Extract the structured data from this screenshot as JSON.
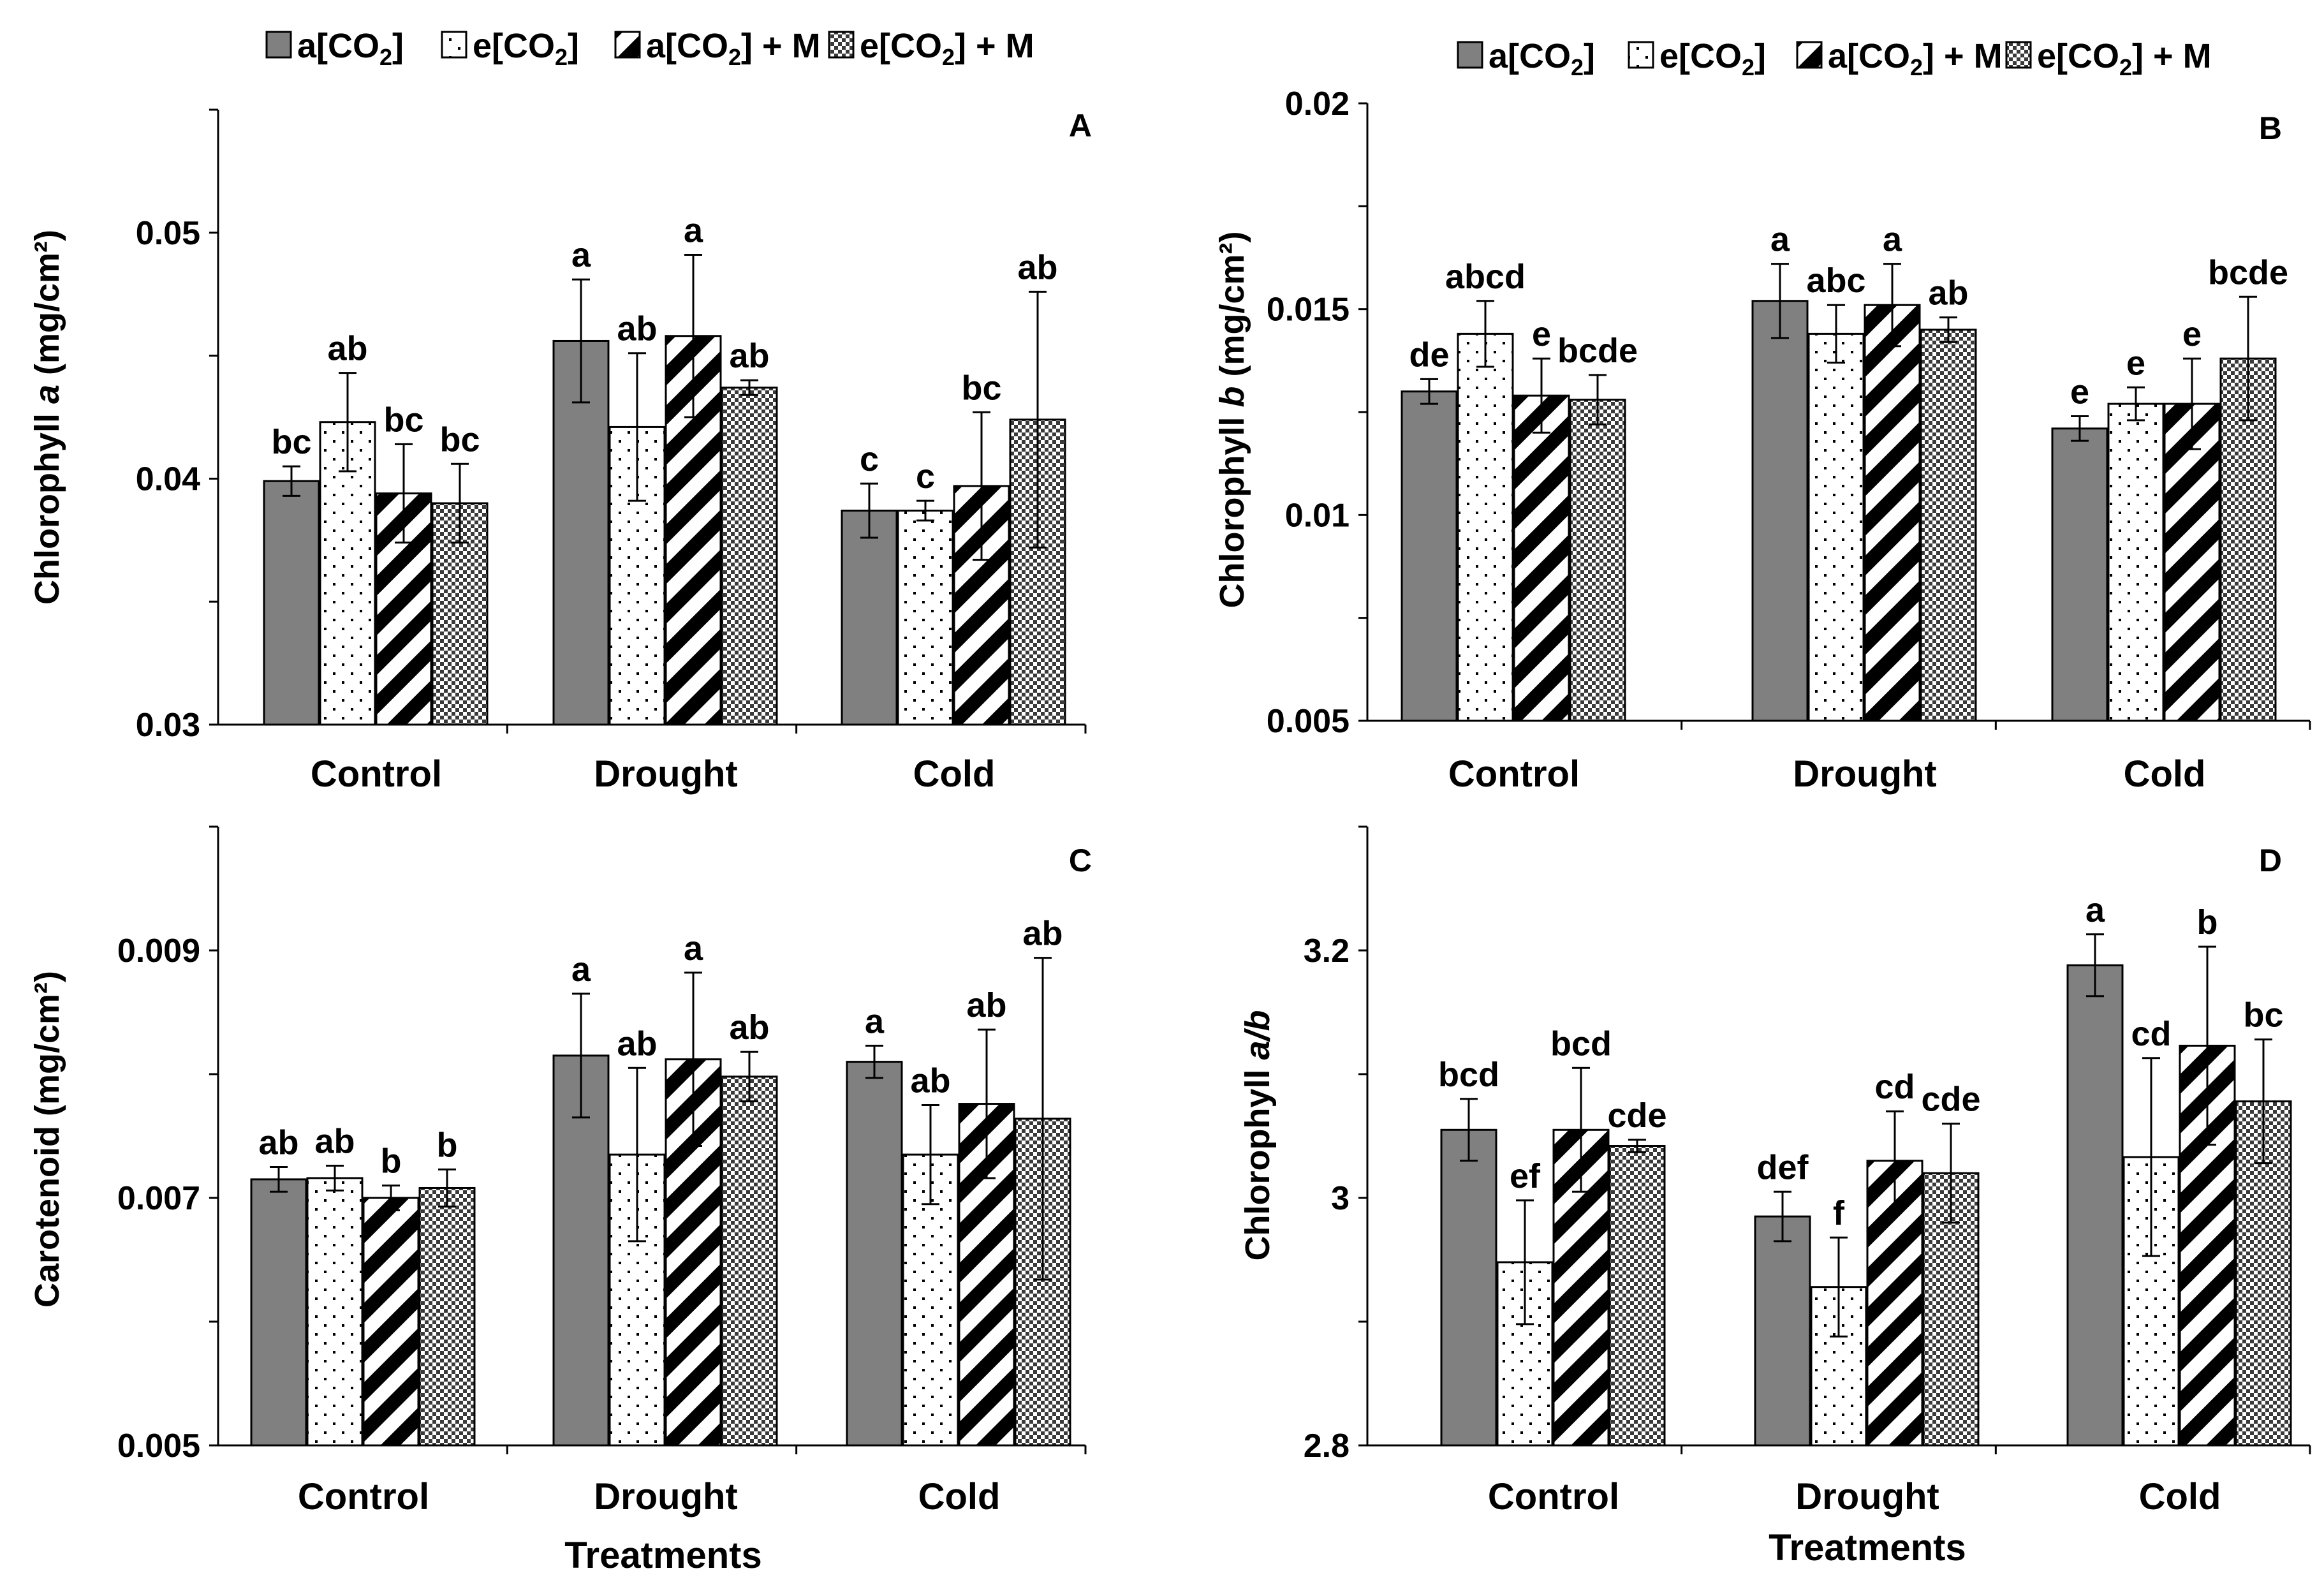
{
  "legend": {
    "items": [
      {
        "pre": "a[CO",
        "sub": "2",
        "post": "]",
        "pattern": "solid"
      },
      {
        "pre": "e[CO",
        "sub": "2",
        "post": "]",
        "pattern": "dots"
      },
      {
        "pre": "a[CO",
        "sub": "2",
        "post": "] + M",
        "pattern": "diag"
      },
      {
        "pre": "e[CO",
        "sub": "2",
        "post": "] + M",
        "pattern": "check"
      }
    ]
  },
  "x_axis_title": "Treatments",
  "chart_data": [
    {
      "type": "bar",
      "panel": "A",
      "ylabel_pre": "Chlorophyll ",
      "ylabel_ital": "a",
      "ylabel_post": " (mg/cm²)",
      "ylim": [
        0.03,
        0.055
      ],
      "yticks": [
        "0.03",
        "0.04",
        "0.05"
      ],
      "ytick_values": [
        0.03,
        0.04,
        0.05
      ],
      "minor_step": 0.005,
      "categories": [
        "Control",
        "Drought",
        "Cold"
      ],
      "series": [
        {
          "name": "a[CO2]",
          "values": [
            0.0399,
            0.0456,
            0.0387
          ],
          "errors": [
            0.0006,
            0.0025,
            0.0011
          ],
          "labels": [
            "bc",
            "a",
            "c"
          ]
        },
        {
          "name": "e[CO2]",
          "values": [
            0.0423,
            0.0421,
            0.0387
          ],
          "errors": [
            0.002,
            0.003,
            0.0004
          ],
          "labels": [
            "ab",
            "ab",
            "c"
          ]
        },
        {
          "name": "a[CO2] + M",
          "values": [
            0.0394,
            0.0458,
            0.0397
          ],
          "errors": [
            0.002,
            0.0033,
            0.003
          ],
          "labels": [
            "bc",
            "a",
            "bc"
          ]
        },
        {
          "name": "e[CO2] + M",
          "values": [
            0.039,
            0.0437,
            0.0424
          ],
          "errors": [
            0.0016,
            0.0003,
            0.0052
          ],
          "labels": [
            "bc",
            "ab",
            "ab"
          ]
        }
      ]
    },
    {
      "type": "bar",
      "panel": "B",
      "ylabel_pre": "Chlorophyll ",
      "ylabel_ital": "b",
      "ylabel_post": " (mg/cm²)",
      "ylim": [
        0.005,
        0.02
      ],
      "yticks": [
        "0.005",
        "0.01",
        "0.015",
        "0.02"
      ],
      "ytick_values": [
        0.005,
        0.01,
        0.015,
        0.02
      ],
      "minor_step": 0.0025,
      "categories": [
        "Control",
        "Drought",
        "Cold"
      ],
      "series": [
        {
          "name": "a[CO2]",
          "values": [
            0.013,
            0.0152,
            0.0121
          ],
          "errors": [
            0.0003,
            0.0009,
            0.0003
          ],
          "labels": [
            "de",
            "a",
            "e"
          ]
        },
        {
          "name": "e[CO2]",
          "values": [
            0.0144,
            0.0144,
            0.0127
          ],
          "errors": [
            0.0008,
            0.0007,
            0.0004
          ],
          "labels": [
            "abcd",
            "abc",
            "e"
          ]
        },
        {
          "name": "a[CO2] + M",
          "values": [
            0.0129,
            0.0151,
            0.0127
          ],
          "errors": [
            0.0009,
            0.001,
            0.0011
          ],
          "labels": [
            "e",
            "a",
            "e"
          ]
        },
        {
          "name": "e[CO2] + M",
          "values": [
            0.0128,
            0.0145,
            0.0138
          ],
          "errors": [
            0.0006,
            0.0003,
            0.0015
          ],
          "labels": [
            "bcde",
            "ab",
            "bcde"
          ]
        }
      ]
    },
    {
      "type": "bar",
      "panel": "C",
      "ylabel_pre": "Carotenoid (mg/cm²)",
      "ylabel_ital": "",
      "ylabel_post": "",
      "ylim": [
        0.005,
        0.01
      ],
      "yticks": [
        "0.005",
        "0.007",
        "0.009"
      ],
      "ytick_values": [
        0.005,
        0.007,
        0.009
      ],
      "minor_step": 0.001,
      "categories": [
        "Control",
        "Drought",
        "Cold"
      ],
      "series": [
        {
          "name": "a[CO2]",
          "values": [
            0.00715,
            0.00815,
            0.0081
          ],
          "errors": [
            0.0001,
            0.0005,
            0.00013
          ],
          "labels": [
            "ab",
            "a",
            "a"
          ]
        },
        {
          "name": "e[CO2]",
          "values": [
            0.00716,
            0.00735,
            0.00735
          ],
          "errors": [
            0.0001,
            0.0007,
            0.0004
          ],
          "labels": [
            "ab",
            "ab",
            "ab"
          ]
        },
        {
          "name": "a[CO2] + M",
          "values": [
            0.007,
            0.00812,
            0.00776
          ],
          "errors": [
            0.0001,
            0.0007,
            0.0006
          ],
          "labels": [
            "b",
            "a",
            "ab"
          ]
        },
        {
          "name": "e[CO2] + M",
          "values": [
            0.00708,
            0.00798,
            0.00764
          ],
          "errors": [
            0.00015,
            0.0002,
            0.0013
          ],
          "labels": [
            "b",
            "ab",
            "ab"
          ]
        }
      ]
    },
    {
      "type": "bar",
      "panel": "D",
      "ylabel_pre": "Chlorophyll ",
      "ylabel_ital": "a/b",
      "ylabel_post": "",
      "ylim": [
        2.8,
        3.3
      ],
      "yticks": [
        "2.8",
        "3",
        "3.2"
      ],
      "ytick_values": [
        2.8,
        3.0,
        3.2
      ],
      "minor_step": 0.1,
      "categories": [
        "Control",
        "Drought",
        "Cold"
      ],
      "series": [
        {
          "name": "a[CO2]",
          "values": [
            3.055,
            2.985,
            3.188
          ],
          "errors": [
            0.025,
            0.02,
            0.025
          ],
          "labels": [
            "bcd",
            "def",
            "a"
          ]
        },
        {
          "name": "e[CO2]",
          "values": [
            2.948,
            2.928,
            3.033
          ],
          "errors": [
            0.05,
            0.04,
            0.08
          ],
          "labels": [
            "ef",
            "f",
            "cd"
          ]
        },
        {
          "name": "a[CO2] + M",
          "values": [
            3.055,
            3.03,
            3.123
          ],
          "errors": [
            0.05,
            0.04,
            0.08
          ],
          "labels": [
            "bcd",
            "cd",
            "b"
          ]
        },
        {
          "name": "e[CO2] + M",
          "values": [
            3.042,
            3.02,
            3.078
          ],
          "errors": [
            0.005,
            0.04,
            0.05
          ],
          "labels": [
            "cde",
            "cde",
            "bc"
          ]
        }
      ]
    }
  ]
}
